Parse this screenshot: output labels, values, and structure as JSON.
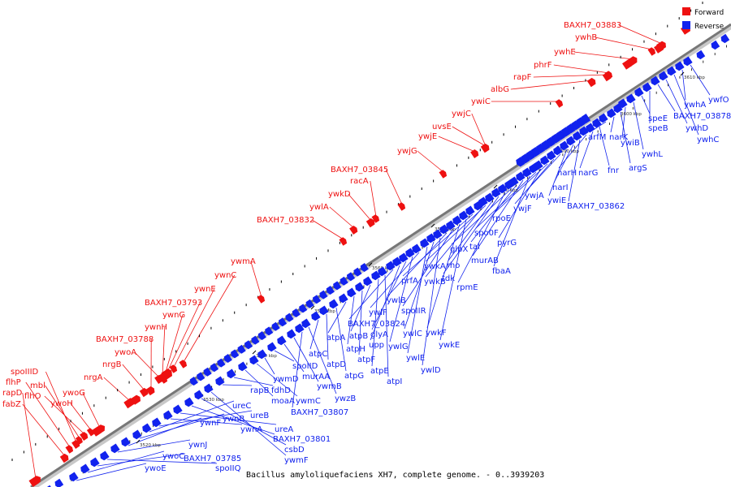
{
  "caption": "Bacillus amyloliquefaciens XH7, complete genome. - 0..3939203",
  "legend": [
    {
      "label": "Forward",
      "color": "#ee1111"
    },
    {
      "label": "Reverse",
      "color": "#1122ee"
    }
  ],
  "colors": {
    "forward": "#ee1111",
    "reverse": "#1122ee",
    "backbone": "#777777",
    "minor_tick": "#000000"
  },
  "ticks": [
    "3520 kbp",
    "3530 kbp",
    "3540 kbp",
    "3550 kbp",
    "3560 kbp",
    "3570 kbp",
    "3580 kbp",
    "3590 kbp",
    "3600 kbp",
    "3610 kbp"
  ],
  "forward_genes": [
    "rapD",
    "fabZ",
    "flhP",
    "spoIIID",
    "mbl",
    "flhO",
    "ywoH",
    "ywoG",
    "nrgA",
    "nrgB",
    "BAXH7_03788",
    "ywoA",
    "ywnH",
    "BAXH7_03793",
    "ywnG",
    "ywnE",
    "ywnC",
    "ywmA",
    "BAXH7_03832",
    "ywlA",
    "ywkD",
    "racA",
    "BAXH7_03845",
    "ywjG",
    "ywjE",
    "uvsE",
    "ywjC",
    "ywiC",
    "albG",
    "rapF",
    "phrF",
    "ywhE",
    "ywhB",
    "BAXH7_03883"
  ],
  "reverse_genes": [
    "ywoE",
    "ywoC",
    "BAXH7_03785",
    "spoIIQ",
    "ywnJ",
    "ywnF",
    "ywnB",
    "ureC",
    "ureB",
    "ywnA",
    "ureA",
    "BAXH7_03801",
    "csbD",
    "ywmF",
    "rapB",
    "fdhD",
    "moaA",
    "ywmC",
    "ywmD",
    "spoIID",
    "murAA",
    "ywmB",
    "BAXH7_03807",
    "ywzB",
    "atpC",
    "atpD",
    "atpG",
    "atpA",
    "atpH",
    "atpF",
    "atpB",
    "atpE",
    "atpI",
    "BAXH7_03824",
    "upp",
    "glyA",
    "ywlG",
    "ywlF",
    "ywlE",
    "ywlC",
    "ywlD",
    "ywlB",
    "spoIIR",
    "ywkF",
    "ywkE",
    "prfA",
    "ywkB",
    "ywkA",
    "rho",
    "tdk",
    "rpmE",
    "glpX",
    "tal",
    "murAB",
    "fbaA",
    "spo0F",
    "pyrG",
    "rpoE",
    "ywjF",
    "ywjA",
    "ywiE",
    "narI",
    "BAXH7_03862",
    "narH",
    "narG",
    "fnr",
    "arfM",
    "narK",
    "argS",
    "ywiB",
    "ywhL",
    "speE",
    "speB",
    "BAXH7_03878",
    "ywhD",
    "ywhC",
    "ywhA",
    "ywfO"
  ]
}
